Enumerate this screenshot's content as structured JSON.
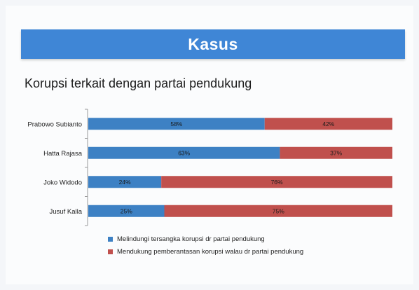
{
  "header": {
    "title": "Kasus"
  },
  "subtitle": "Korupsi terkait dengan partai pendukung",
  "colors": {
    "banner": "#3f86d6",
    "series1": "#3d81c4",
    "series2": "#c0504d"
  },
  "chart_data": {
    "type": "bar",
    "orientation": "horizontal",
    "stacked": true,
    "normalized": true,
    "categories": [
      "Prabowo Subianto",
      "Hatta Rajasa",
      "Joko Widodo",
      "Jusuf Kalla"
    ],
    "series": [
      {
        "name": "Melindungi tersangka korupsi dr partai pendukung",
        "values": [
          58,
          63,
          24,
          25
        ],
        "labels": [
          "58%",
          "63%",
          "24%",
          "25%"
        ]
      },
      {
        "name": "Mendukung pemberantasan korupsi walau dr partai pendukung",
        "values": [
          42,
          37,
          76,
          75
        ],
        "labels": [
          "42%",
          "37%",
          "76%",
          "75%"
        ]
      }
    ],
    "xlim": [
      0,
      100
    ],
    "legend": "bottom"
  }
}
